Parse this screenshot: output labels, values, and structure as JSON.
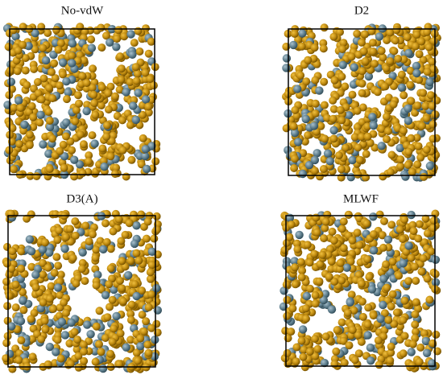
{
  "panels": [
    {
      "title": "No-vdW"
    },
    {
      "title": "D2"
    },
    {
      "title": "D3(A)"
    },
    {
      "title": "MLWF"
    }
  ]
}
